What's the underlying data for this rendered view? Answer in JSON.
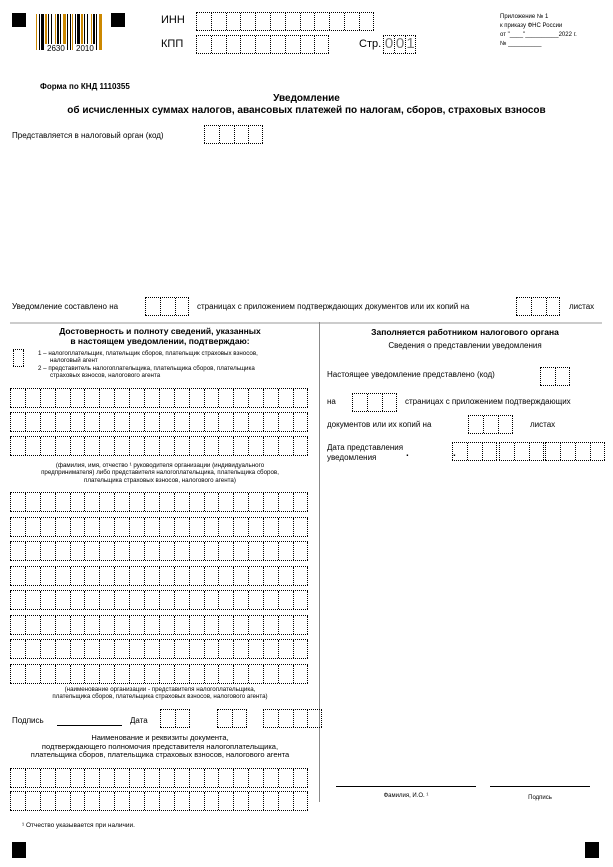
{
  "barcode": {
    "left": "2630",
    "right": "2010"
  },
  "header": {
    "inn_label": "ИНН",
    "kpp_label": "КПП",
    "page_label": "Стр.",
    "page_digits": [
      "0",
      "0",
      "1"
    ],
    "appendix": [
      "Приложение № 1",
      "к приказу ФНС России",
      "от \"____\"__________2022 г.",
      "№ __________"
    ]
  },
  "form_code": "Форма по КНД 1110355",
  "title": "Уведомление",
  "subtitle": "об исчисленных суммах налогов, авансовых платежей по налогам, сборов, страховых взносов",
  "tax_authority_label": "Представляется в налоговый орган (код)",
  "pages_line": {
    "prefix": "Уведомление составлено на",
    "middle": "страницах с приложением подтверждающих документов или их копий на",
    "suffix": "листах"
  },
  "left": {
    "heading1": "Достоверность и полноту сведений, указанных",
    "heading2": "в настоящем уведомлении, подтверждаю:",
    "option1a": "1 – налогоплательщик, плательщик сборов, плательщик страховых взносов,",
    "option1b": "налоговый агент",
    "option2a": "2 – представитель налогоплательщика, плательщика сборов, плательщика",
    "option2b": "страховых взносов, налогового агента",
    "fio_note1": "(фамилия, имя, отчество ¹ руководителя организации (индивидуального",
    "fio_note2": "предпринимателя) либо представителя налогоплательщика, плательщика сборов,",
    "fio_note3": "плательщика страховых взносов, налогового агента)",
    "org_note1": "(наименование организации - представителя налогоплательщика,",
    "org_note2": "плательщика сборов, плательщика страховых взносов, налогового агента)",
    "signature_label": "Подпись",
    "date_label": "Дата",
    "doc1": "Наименование и реквизиты документа,",
    "doc2": "подтверждающего полномочия представителя налогоплательщика,",
    "doc3": "плательщика сборов, плательщика страховых взносов, налогового агента"
  },
  "right": {
    "heading": "Заполняется работником налогового органа",
    "subheading": "Сведения о представлении уведомления",
    "submitted_label": "Настоящее уведомление представлено (код)",
    "on_label": "на",
    "pages_label": "страницах с приложением подтверждающих",
    "docs_label": "документов или их копий  на",
    "sheets_label": "листах",
    "date1": "Дата представления",
    "date2": "уведомления",
    "fio_label": "Фамилия, И.О. ¹",
    "sign_label": "Подпись"
  },
  "footnote": "¹ Отчество указывается при наличии."
}
